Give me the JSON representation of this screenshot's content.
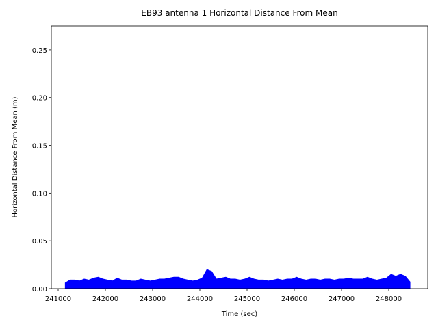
{
  "chart_data": {
    "type": "area",
    "title": "EB93 antenna 1 Horizontal Distance From Mean",
    "x_label": "Time (sec)",
    "y_label": "Horizontal Distance From Mean (m)",
    "color": "#0000ff",
    "x": [
      241150,
      241250,
      241350,
      241450,
      241550,
      241650,
      241750,
      241850,
      241950,
      242050,
      242150,
      242250,
      242350,
      242450,
      242550,
      242650,
      242750,
      242850,
      242950,
      243050,
      243150,
      243250,
      243350,
      243450,
      243550,
      243650,
      243750,
      243850,
      243950,
      244050,
      244150,
      244250,
      244350,
      244450,
      244550,
      244650,
      244750,
      244850,
      244950,
      245050,
      245150,
      245250,
      245350,
      245450,
      245550,
      245650,
      245750,
      245850,
      245950,
      246050,
      246150,
      246250,
      246350,
      246450,
      246550,
      246650,
      246750,
      246850,
      246950,
      247050,
      247150,
      247250,
      247350,
      247450,
      247550,
      247650,
      247750,
      247850,
      247950,
      248050,
      248150,
      248250,
      248350,
      248450
    ],
    "values": [
      0.006,
      0.009,
      0.009,
      0.008,
      0.01,
      0.009,
      0.011,
      0.012,
      0.01,
      0.009,
      0.008,
      0.011,
      0.009,
      0.009,
      0.008,
      0.008,
      0.01,
      0.009,
      0.008,
      0.009,
      0.01,
      0.01,
      0.011,
      0.012,
      0.012,
      0.01,
      0.009,
      0.008,
      0.009,
      0.011,
      0.02,
      0.018,
      0.01,
      0.011,
      0.012,
      0.01,
      0.01,
      0.009,
      0.01,
      0.012,
      0.01,
      0.009,
      0.009,
      0.008,
      0.009,
      0.01,
      0.009,
      0.01,
      0.01,
      0.012,
      0.01,
      0.009,
      0.01,
      0.01,
      0.009,
      0.01,
      0.01,
      0.009,
      0.01,
      0.01,
      0.011,
      0.01,
      0.01,
      0.01,
      0.012,
      0.01,
      0.009,
      0.01,
      0.011,
      0.015,
      0.013,
      0.015,
      0.013,
      0.007
    ],
    "xlim": [
      240855,
      248826
    ],
    "ylim": [
      0,
      0.275
    ],
    "xticks": [
      241000,
      242000,
      243000,
      244000,
      245000,
      246000,
      247000,
      248000
    ],
    "yticks": [
      {
        "value": 0,
        "label": "0.00"
      },
      {
        "value": 0.05,
        "label": "0.05"
      },
      {
        "value": 0.1,
        "label": "0.10"
      },
      {
        "value": 0.15,
        "label": "0.15"
      },
      {
        "value": 0.2,
        "label": "0.20"
      },
      {
        "value": 0.25,
        "label": "0.25"
      }
    ]
  }
}
